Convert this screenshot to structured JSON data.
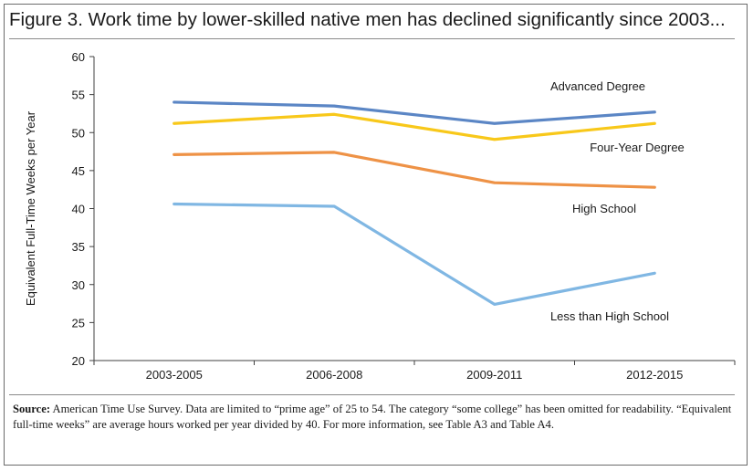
{
  "title": "Figure 3. Work time by lower-skilled native men has declined significantly since 2003...",
  "source": {
    "label": "Source:",
    "text": " American Time Use Survey. Data are limited to “prime age” of 25 to 54. The category “some college” has been omitted for readability. “Equivalent full-time weeks” are average hours worked per year divided by 40. For more information, see Table A3 and Table A4."
  },
  "chart_data": {
    "type": "line",
    "title": "",
    "xlabel": "",
    "ylabel": "Equivalent Full-Time Weeks per Year",
    "categories": [
      "2003-2005",
      "2006-2008",
      "2009-2011",
      "2012-2015"
    ],
    "ylim": [
      20,
      60
    ],
    "yticks": [
      20,
      25,
      30,
      35,
      40,
      45,
      50,
      55,
      60
    ],
    "grid": false,
    "series": [
      {
        "name": "Advanced Degree",
        "color": "#5b86c5",
        "values": [
          54.0,
          53.5,
          51.2,
          52.7
        ]
      },
      {
        "name": "Four-Year Degree",
        "color": "#f8c81a",
        "values": [
          51.2,
          52.4,
          49.1,
          51.2
        ]
      },
      {
        "name": "High School",
        "color": "#ee9246",
        "values": [
          47.1,
          47.4,
          43.4,
          42.8
        ]
      },
      {
        "name": "Less than High School",
        "color": "#80b7e3",
        "values": [
          40.6,
          40.3,
          27.4,
          31.5
        ]
      }
    ]
  }
}
